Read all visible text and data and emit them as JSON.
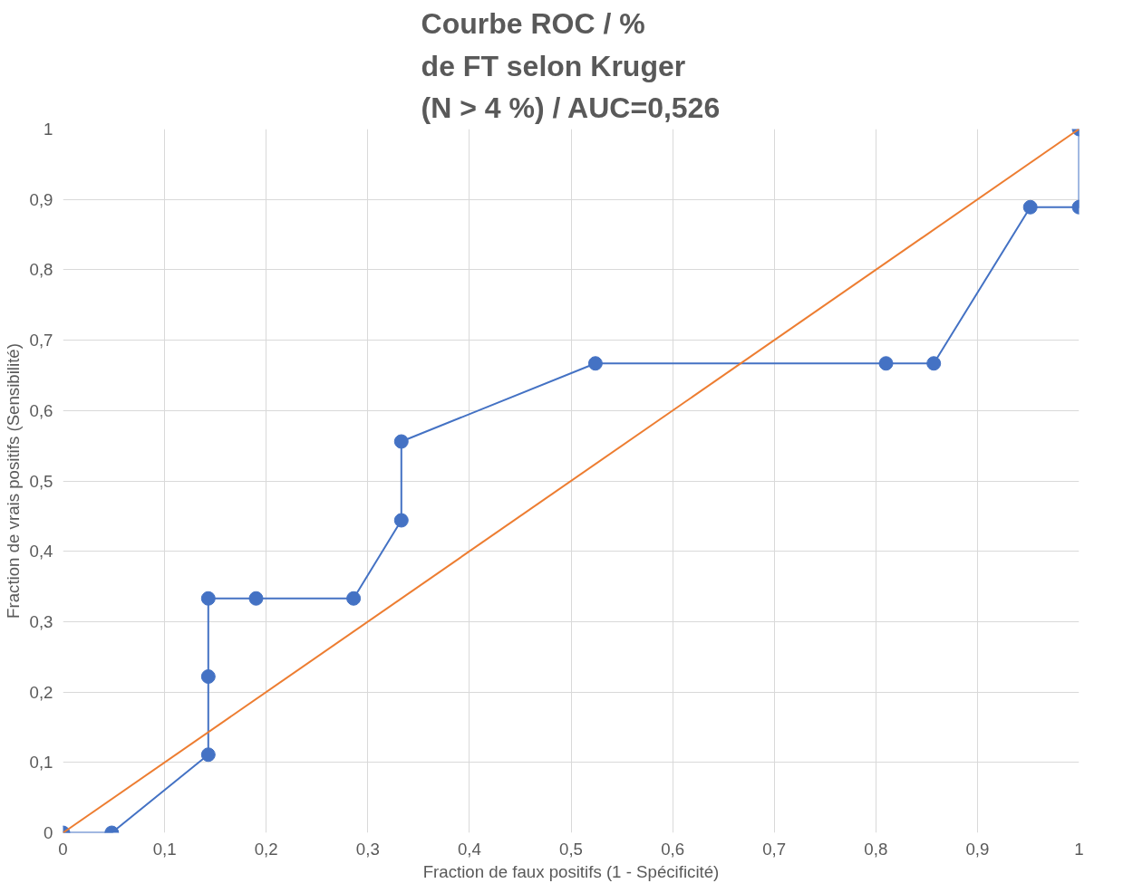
{
  "chart_data": {
    "type": "line",
    "title": "Courbe ROC / %\nde FT selon Kruger\n(N > 4 %) / AUC=0,526",
    "xlabel": "Fraction de faux positifs (1 - Spécificité)",
    "ylabel": "Fraction de vrais positifs (Sensibilité)",
    "series": [
      {
        "color": "#4472c4",
        "marker": "circle",
        "x": [
          0,
          0.048,
          0.143,
          0.143,
          0.143,
          0.19,
          0.286,
          0.333,
          0.333,
          0.524,
          0.81,
          0.857,
          0.952,
          1,
          1
        ],
        "values": [
          0,
          0,
          0.111,
          0.222,
          0.333,
          0.333,
          0.333,
          0.444,
          0.556,
          0.667,
          0.667,
          0.667,
          0.889,
          0.889,
          1
        ]
      },
      {
        "color": "#ed7d31",
        "marker": "none",
        "x": [
          0,
          1
        ],
        "values": [
          0,
          1
        ]
      }
    ],
    "xlim": [
      0,
      1
    ],
    "ylim": [
      0,
      1
    ],
    "xticks": [
      0,
      {
        "value": 0.1,
        "label": "0,1"
      },
      {
        "value": 0.2,
        "label": "0,2"
      },
      {
        "value": 0.3,
        "label": "0,3"
      },
      {
        "value": 0.4,
        "label": "0,4"
      },
      {
        "value": 0.5,
        "label": "0,5"
      },
      {
        "value": 0.6,
        "label": "0,6"
      },
      {
        "value": 0.7,
        "label": "0,7"
      },
      {
        "value": 0.8,
        "label": "0,8"
      },
      {
        "value": 0.9,
        "label": "0,9"
      },
      1
    ],
    "yticks": [
      0,
      {
        "value": 0.1,
        "label": "0,1"
      },
      {
        "value": 0.2,
        "label": "0,2"
      },
      {
        "value": 0.3,
        "label": "0,3"
      },
      {
        "value": 0.4,
        "label": "0,4"
      },
      {
        "value": 0.5,
        "label": "0,5"
      },
      {
        "value": 0.6,
        "label": "0,6"
      },
      {
        "value": 0.7,
        "label": "0,7"
      },
      {
        "value": 0.8,
        "label": "0,8"
      },
      {
        "value": 0.9,
        "label": "0,9"
      },
      1
    ],
    "grid": true,
    "line_style": "solid"
  }
}
